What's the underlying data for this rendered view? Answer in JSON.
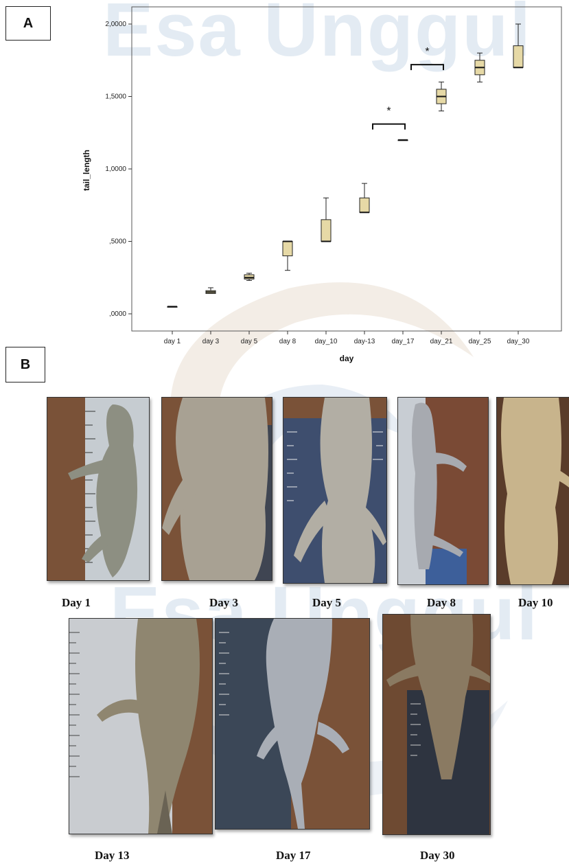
{
  "watermark": "Esa Unggul",
  "panels": {
    "a_label": "A",
    "b_label": "B"
  },
  "chart_data": {
    "type": "box",
    "xlabel": "day",
    "ylabel": "tail_length",
    "ylim": [
      0,
      2.0
    ],
    "yticks": [
      {
        "value": 0,
        "label": ",0000"
      },
      {
        "value": 0.5,
        "label": ",5000"
      },
      {
        "value": 1.0,
        "label": "1,0000"
      },
      {
        "value": 1.5,
        "label": "1,5000"
      },
      {
        "value": 2.0,
        "label": "2,0000"
      }
    ],
    "categories": [
      "day 1",
      "day 3",
      "day 5",
      "day 8",
      "day_10",
      "day-13",
      "day_17",
      "day_21",
      "day_25",
      "day_30"
    ],
    "boxes": [
      {
        "min": 0.05,
        "q1": 0.05,
        "median": 0.05,
        "q3": 0.05,
        "max": 0.05
      },
      {
        "min": 0.14,
        "q1": 0.14,
        "median": 0.15,
        "q3": 0.16,
        "max": 0.18
      },
      {
        "min": 0.23,
        "q1": 0.24,
        "median": 0.25,
        "q3": 0.27,
        "max": 0.28
      },
      {
        "min": 0.3,
        "q1": 0.4,
        "median": 0.5,
        "q3": 0.5,
        "max": 0.5
      },
      {
        "min": 0.5,
        "q1": 0.5,
        "median": 0.5,
        "q3": 0.65,
        "max": 0.8
      },
      {
        "min": 0.7,
        "q1": 0.7,
        "median": 0.7,
        "q3": 0.8,
        "max": 0.9
      },
      {
        "min": 1.2,
        "q1": 1.2,
        "median": 1.2,
        "q3": 1.2,
        "max": 1.2
      },
      {
        "min": 1.4,
        "q1": 1.45,
        "median": 1.5,
        "q3": 1.55,
        "max": 1.6
      },
      {
        "min": 1.6,
        "q1": 1.65,
        "median": 1.7,
        "q3": 1.75,
        "max": 1.8
      },
      {
        "min": 1.7,
        "q1": 1.7,
        "median": 1.7,
        "q3": 1.85,
        "max": 2.0
      }
    ],
    "annotations": [
      {
        "label": "*",
        "from": "day-13",
        "to": "day_17",
        "y": 1.31
      },
      {
        "label": "*",
        "from": "day_17",
        "to": "day_21",
        "y": 1.72
      }
    ],
    "box_color": "#e6d9a6"
  },
  "photos": [
    {
      "caption": "Day 1"
    },
    {
      "caption": "Day 3"
    },
    {
      "caption": "Day 5"
    },
    {
      "caption": "Day 8"
    },
    {
      "caption": "Day 10"
    },
    {
      "caption": "Day 13"
    },
    {
      "caption": "Day 17"
    },
    {
      "caption": "Day 30"
    }
  ]
}
